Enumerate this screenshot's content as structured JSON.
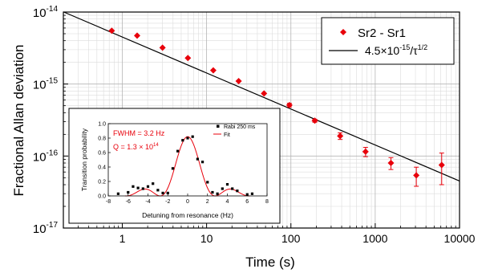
{
  "chart_data": [
    {
      "type": "scatter",
      "xlabel": "Time (s)",
      "ylabel": "Fractional Allan deviation",
      "xscale": "log",
      "yscale": "log",
      "xlim": [
        0.2,
        10000
      ],
      "ylim": [
        1e-17,
        1e-14
      ],
      "grid": true,
      "legend_position": "top-right",
      "x_ticks": [
        {
          "value": 1,
          "label": "1"
        },
        {
          "value": 10,
          "label": "10"
        },
        {
          "value": 100,
          "label": "100"
        },
        {
          "value": 1000,
          "label": "1000"
        },
        {
          "value": 10000,
          "label": "10000"
        }
      ],
      "y_ticks": [
        {
          "value": 1e-17,
          "mantissa": "10",
          "exponent": "-17"
        },
        {
          "value": 1e-16,
          "mantissa": "10",
          "exponent": "-16"
        },
        {
          "value": 1e-15,
          "mantissa": "10",
          "exponent": "-15"
        },
        {
          "value": 1e-14,
          "mantissa": "10",
          "exponent": "-14"
        }
      ],
      "series": [
        {
          "name": "Sr2 - Sr1",
          "color": "#e8000b",
          "marker": "diamond",
          "points": [
            {
              "x": 0.75,
              "y": 5.5e-15,
              "err": 0
            },
            {
              "x": 1.5,
              "y": 4.7e-15,
              "err": 0
            },
            {
              "x": 3,
              "y": 3.2e-15,
              "err": 0
            },
            {
              "x": 6,
              "y": 2.3e-15,
              "err": 0
            },
            {
              "x": 12,
              "y": 1.55e-15,
              "err": 0
            },
            {
              "x": 24,
              "y": 1.1e-15,
              "err": 0
            },
            {
              "x": 48,
              "y": 7.4e-16,
              "err": 0
            },
            {
              "x": 96,
              "y": 5.1e-16,
              "err": 3e-17
            },
            {
              "x": 192,
              "y": 3.1e-16,
              "err": 1.5e-17
            },
            {
              "x": 384,
              "y": 1.9e-16,
              "err": 2e-17
            },
            {
              "x": 768,
              "y": 1.15e-16,
              "err": 1.7e-17
            },
            {
              "x": 1536,
              "y": 8e-17,
              "err": 1.5e-17
            },
            {
              "x": 3072,
              "y": 5.4e-17,
              "err": 1.6e-17
            },
            {
              "x": 6144,
              "y": 7.5e-17,
              "err": 3.5e-17
            }
          ]
        }
      ],
      "fit": {
        "color": "#000000",
        "coefficient": 4.5e-15,
        "label_prefix": "4.5×10",
        "label_exponent": "-15",
        "label_suffix": "/τ",
        "label_suffix_exponent": "1/2"
      }
    },
    {
      "type": "scatter",
      "xlabel": "Detuning from resonance (Hz)",
      "ylabel": "Transition probability",
      "xlim": [
        -8,
        8
      ],
      "ylim": [
        0,
        1.0
      ],
      "x_ticks": [
        -8,
        -6,
        -4,
        -2,
        0,
        2,
        4,
        6,
        8
      ],
      "y_ticks": [
        "0.0",
        "0.2",
        "0.4",
        "0.6",
        "0.8",
        "1.0"
      ],
      "annotations": {
        "fwhm": "FWHM = 3.2 Hz",
        "q_prefix": "Q = 1.3 × 10",
        "q_exponent": "14"
      },
      "legend": {
        "data_label": "Rabi 250 ms",
        "fit_label": "Fit"
      },
      "series": [
        {
          "name": "Rabi 250 ms",
          "color": "#000000",
          "marker": "square",
          "points": [
            [
              -7.0,
              0.03
            ],
            [
              -6.0,
              0.05
            ],
            [
              -5.5,
              0.13
            ],
            [
              -5.0,
              0.11
            ],
            [
              -4.5,
              0.1
            ],
            [
              -4.0,
              0.13
            ],
            [
              -3.5,
              0.17
            ],
            [
              -3.0,
              0.08
            ],
            [
              -2.5,
              0.04
            ],
            [
              -2.0,
              0.04
            ],
            [
              -1.5,
              0.38
            ],
            [
              -1.0,
              0.62
            ],
            [
              -0.5,
              0.77
            ],
            [
              0.0,
              0.8
            ],
            [
              0.5,
              0.82
            ],
            [
              1.0,
              0.51
            ],
            [
              1.5,
              0.47
            ],
            [
              2.0,
              0.19
            ],
            [
              2.5,
              0.05
            ],
            [
              3.0,
              0.03
            ],
            [
              3.5,
              0.1
            ],
            [
              4.0,
              0.16
            ],
            [
              4.5,
              0.1
            ],
            [
              5.0,
              0.07
            ],
            [
              6.0,
              0.02
            ],
            [
              6.5,
              0.03
            ]
          ]
        }
      ],
      "fit_color": "#e8000b",
      "fit_curve": {
        "type": "rabi_sinc2",
        "peak": 0.82,
        "fwhm_hz": 3.2
      }
    }
  ]
}
